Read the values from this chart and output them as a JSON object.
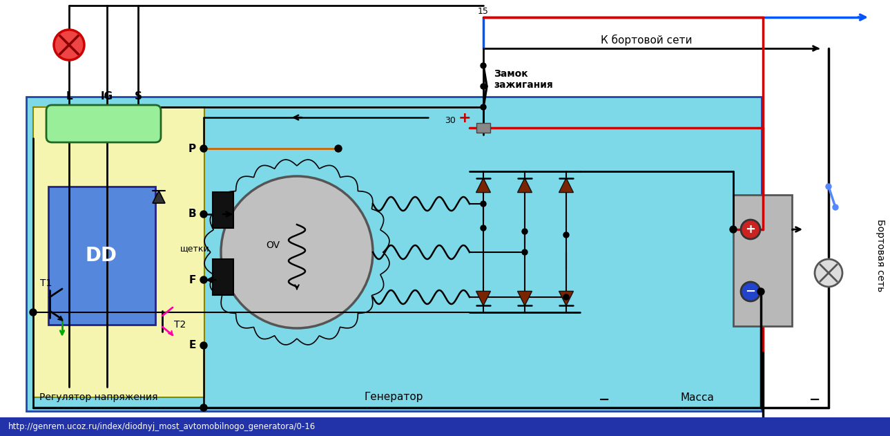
{
  "title": "",
  "bg_color": "#ffffff",
  "fig_width": 12.89,
  "fig_height": 6.31,
  "dpi": 100,
  "main_bg": "#7dd8e8",
  "regulator_bg": "#f5f5b0",
  "dd_bg": "#5588dd",
  "battery_bg": "#bbbbbb",
  "wire_color": "#000000",
  "red_wire": "#cc0000",
  "blue_wire": "#0055ff",
  "green_wire": "#00aa00",
  "pink_wire": "#ff00aa",
  "orange_wire": "#cc6600",
  "diode_color": "#7a2500",
  "lamp_color": "#cc0000",
  "url_text": "http://genrem.ucoz.ru/index/diodnyj_most_avtomobilnogo_generatora/0-16",
  "bottom_bar_color": "#2233aa",
  "label_L": "L",
  "label_IG": "IG",
  "label_S": "S",
  "label_P": "P",
  "label_B": "B",
  "label_F": "F",
  "label_E": "E",
  "label_T1": "T1",
  "label_T2": "T2",
  "label_DD": "DD",
  "label_OV": "OV",
  "label_brushes": "щетки",
  "label_regulator": "Регулятор напряжения",
  "label_generator": "Генератор",
  "label_massa": "Масса",
  "label_bortovaya": "Бортовая сеть",
  "label_zamok": "Замок\nзажигания",
  "label_k_bortovoy": "К бортовой сети",
  "label_30": "30",
  "label_15": "15",
  "label_minus": "−"
}
